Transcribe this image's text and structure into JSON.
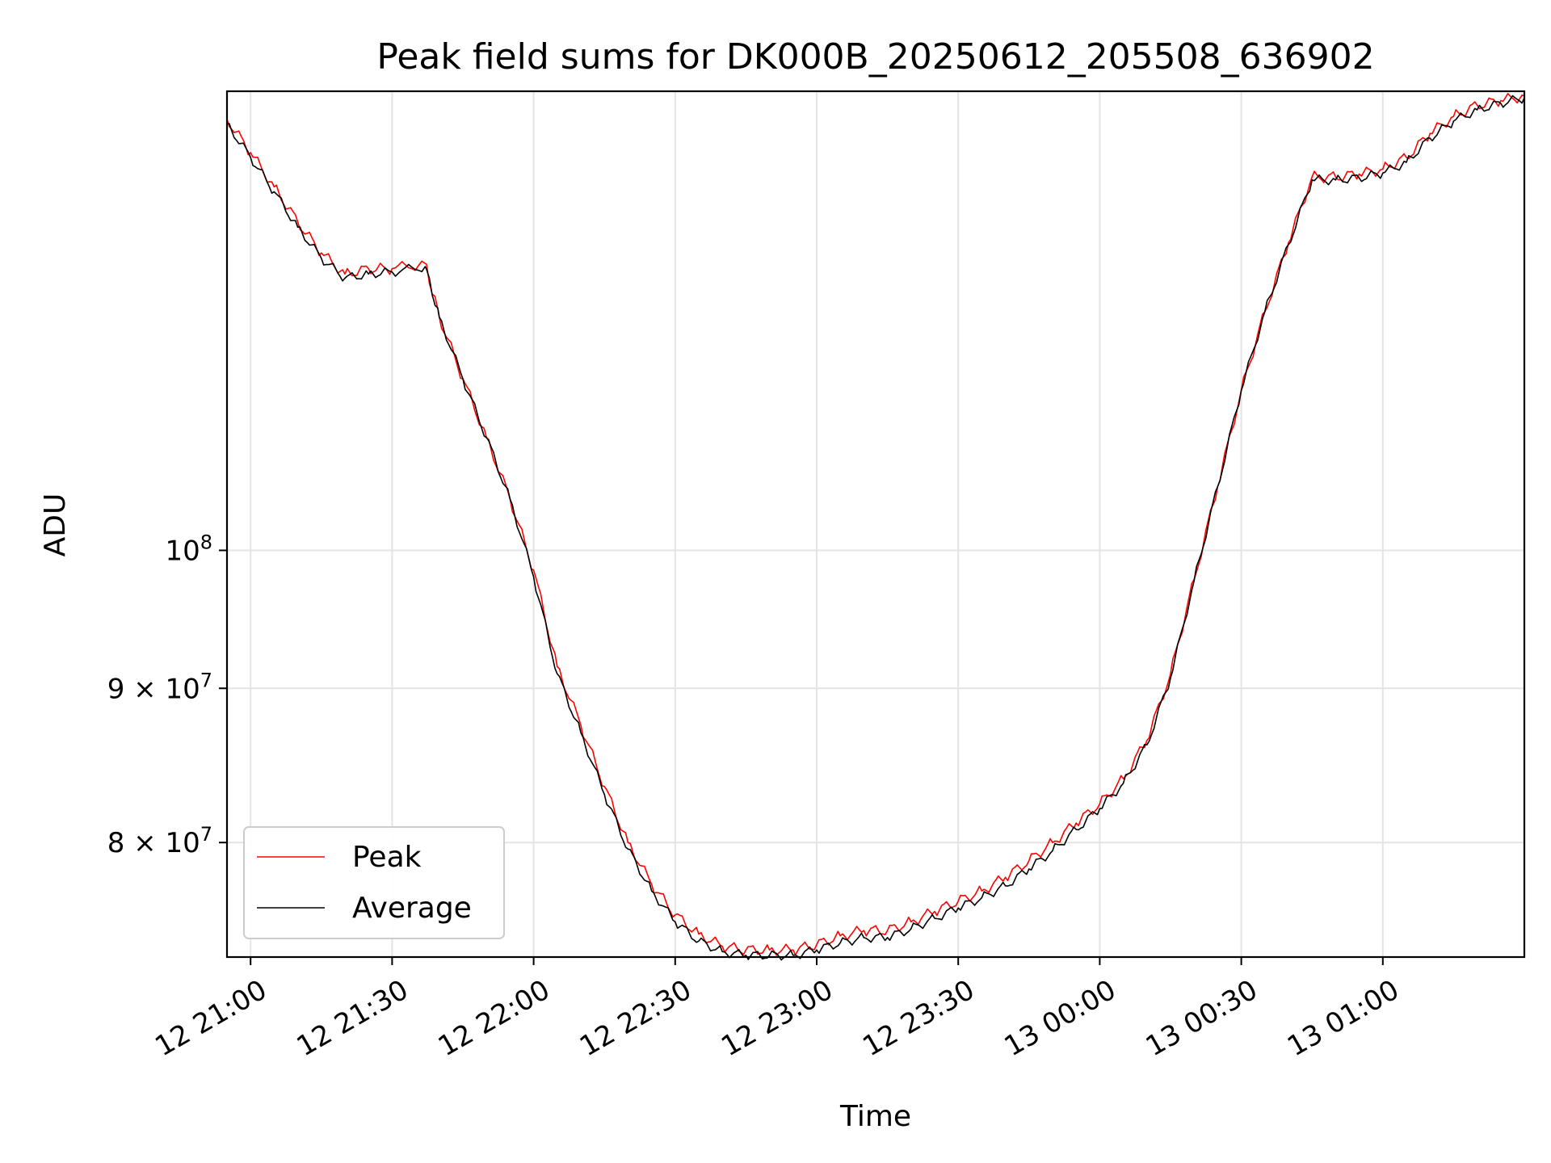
{
  "chart_data": {
    "type": "line",
    "title": "Peak field sums for DK000B_20250612_205508_636902",
    "xlabel": "Time",
    "ylabel": "ADU",
    "y_scale": "log",
    "grid": true,
    "legend_position": "lower-left",
    "x_ticks": [
      "12 21:00",
      "12 21:30",
      "12 22:00",
      "12 22:30",
      "12 23:00",
      "12 23:30",
      "13 00:00",
      "13 00:30",
      "13 01:00"
    ],
    "y_ticks": [
      {
        "value": 100000000,
        "label": "10",
        "exp": "8"
      },
      {
        "value": 90000000,
        "label": "9 × 10",
        "exp": "7"
      },
      {
        "value": 80000000,
        "label": "8 × 10",
        "exp": "7"
      }
    ],
    "xlim": [
      "2025-06-12 20:55",
      "2025-06-13 01:30"
    ],
    "ylim": [
      73300000,
      142000000
    ],
    "series": [
      {
        "name": "Peak",
        "color": "#ff0000",
        "x": [
          "2025-06-12 20:55",
          "2025-06-12 21:00",
          "2025-06-12 21:05",
          "2025-06-12 21:10",
          "2025-06-12 21:15",
          "2025-06-12 21:20",
          "2025-06-12 21:25",
          "2025-06-12 21:30",
          "2025-06-12 21:37",
          "2025-06-12 21:40",
          "2025-06-12 21:45",
          "2025-06-12 21:50",
          "2025-06-12 21:55",
          "2025-06-12 22:00",
          "2025-06-12 22:05",
          "2025-06-12 22:10",
          "2025-06-12 22:15",
          "2025-06-12 22:20",
          "2025-06-12 22:25",
          "2025-06-12 22:30",
          "2025-06-12 22:35",
          "2025-06-12 22:40",
          "2025-06-12 22:45",
          "2025-06-12 22:50",
          "2025-06-12 22:55",
          "2025-06-12 23:00",
          "2025-06-12 23:05",
          "2025-06-12 23:10",
          "2025-06-12 23:15",
          "2025-06-12 23:20",
          "2025-06-12 23:25",
          "2025-06-12 23:30",
          "2025-06-12 23:35",
          "2025-06-12 23:40",
          "2025-06-12 23:45",
          "2025-06-12 23:50",
          "2025-06-12 23:55",
          "2025-06-13 00:00",
          "2025-06-13 00:05",
          "2025-06-13 00:10",
          "2025-06-13 00:15",
          "2025-06-13 00:20",
          "2025-06-13 00:25",
          "2025-06-13 00:30",
          "2025-06-13 00:35",
          "2025-06-13 00:40",
          "2025-06-13 00:45",
          "2025-06-13 00:50",
          "2025-06-13 00:55",
          "2025-06-13 01:00",
          "2025-06-13 01:05",
          "2025-06-13 01:10",
          "2025-06-13 01:15",
          "2025-06-13 01:20",
          "2025-06-13 01:25",
          "2025-06-13 01:30"
        ],
        "values": [
          139000000,
          135500000,
          132000000,
          128500000,
          125500000,
          123500000,
          124000000,
          124000000,
          124500000,
          119500000,
          114000000,
          109000000,
          104000000,
          98500000,
          91500000,
          87500000,
          83500000,
          80000000,
          77500000,
          75700000,
          74600000,
          73900000,
          73700000,
          73700000,
          73700000,
          74000000,
          74500000,
          74800000,
          74800000,
          75300000,
          75900000,
          76500000,
          77100000,
          77900000,
          78900000,
          80000000,
          81200000,
          82400000,
          84000000,
          86500000,
          91000000,
          97800000,
          105000000,
          113000000,
          120000000,
          126500000,
          133000000,
          133000000,
          133300000,
          133800000,
          135000000,
          137500000,
          139300000,
          140500000,
          141000000,
          141500000
        ]
      },
      {
        "name": "Average",
        "color": "#000000",
        "x": [
          "2025-06-12 20:55",
          "2025-06-12 21:00",
          "2025-06-12 21:05",
          "2025-06-12 21:10",
          "2025-06-12 21:15",
          "2025-06-12 21:20",
          "2025-06-12 21:25",
          "2025-06-12 21:30",
          "2025-06-12 21:37",
          "2025-06-12 21:40",
          "2025-06-12 21:45",
          "2025-06-12 21:50",
          "2025-06-12 21:55",
          "2025-06-12 22:00",
          "2025-06-12 22:05",
          "2025-06-12 22:10",
          "2025-06-12 22:15",
          "2025-06-12 22:20",
          "2025-06-12 22:25",
          "2025-06-12 22:30",
          "2025-06-12 22:35",
          "2025-06-12 22:40",
          "2025-06-12 22:45",
          "2025-06-12 22:50",
          "2025-06-12 22:55",
          "2025-06-12 23:00",
          "2025-06-12 23:05",
          "2025-06-12 23:10",
          "2025-06-12 23:15",
          "2025-06-12 23:20",
          "2025-06-12 23:25",
          "2025-06-12 23:30",
          "2025-06-12 23:35",
          "2025-06-12 23:40",
          "2025-06-12 23:45",
          "2025-06-12 23:50",
          "2025-06-12 23:55",
          "2025-06-13 00:00",
          "2025-06-13 00:05",
          "2025-06-13 00:10",
          "2025-06-13 00:15",
          "2025-06-13 00:20",
          "2025-06-13 00:25",
          "2025-06-13 00:30",
          "2025-06-13 00:35",
          "2025-06-13 00:40",
          "2025-06-13 00:45",
          "2025-06-13 00:50",
          "2025-06-13 00:55",
          "2025-06-13 01:00",
          "2025-06-13 01:05",
          "2025-06-13 01:10",
          "2025-06-13 01:15",
          "2025-06-13 01:20",
          "2025-06-13 01:25",
          "2025-06-13 01:30"
        ],
        "values": [
          138500000,
          135000000,
          131500000,
          128000000,
          125000000,
          123100000,
          123500000,
          123700000,
          124200000,
          119500000,
          114000000,
          109000000,
          104000000,
          98000000,
          91000000,
          87000000,
          83000000,
          79600000,
          77100000,
          75300000,
          74200000,
          73600000,
          73400000,
          73400000,
          73400000,
          73700000,
          74100000,
          74400000,
          74400000,
          74900000,
          75500000,
          76100000,
          76700000,
          77400000,
          78400000,
          79500000,
          80800000,
          82100000,
          83700000,
          86200000,
          90700000,
          97700000,
          105000000,
          113000000,
          120000000,
          126300000,
          132700000,
          132700000,
          132900000,
          133400000,
          134500000,
          137000000,
          138800000,
          140000000,
          140700000,
          141300000
        ]
      }
    ]
  }
}
